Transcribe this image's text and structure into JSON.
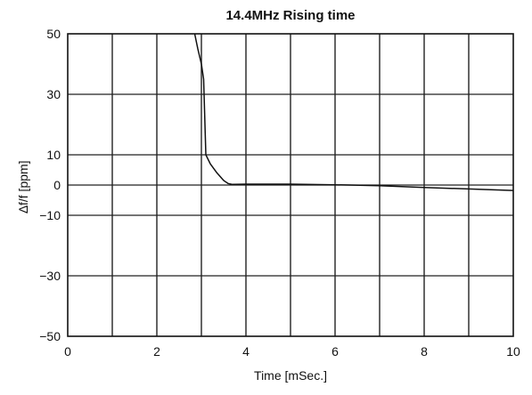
{
  "chart_data": {
    "type": "line",
    "title": "14.4MHz Rising time",
    "xlabel": "Time [mSec.]",
    "ylabel": "∆f/f [ppm]",
    "xlim": [
      0,
      10
    ],
    "ylim": [
      -50,
      50
    ],
    "xticks": [
      0,
      2,
      4,
      6,
      8,
      10
    ],
    "yticks": [
      50,
      30,
      10,
      0,
      -10,
      -30,
      -50
    ],
    "xtick_labels": [
      "0",
      "2",
      "4",
      "6",
      "8",
      "10"
    ],
    "ytick_labels": [
      "50",
      "30",
      "10",
      "0",
      "−10",
      "−30",
      "−50"
    ],
    "grid": true,
    "x_gridlines": [
      1,
      2,
      3,
      4,
      5,
      6,
      7,
      8,
      9
    ],
    "y_gridlines": [
      30,
      10,
      0,
      -10,
      -30
    ],
    "series": [
      {
        "color": "#111111",
        "x": [
          2.85,
          2.92,
          3.0,
          3.05,
          3.08,
          3.1,
          3.2,
          3.35,
          3.5,
          3.6,
          3.7,
          4.0,
          5.0,
          6.0,
          7.0,
          8.0,
          9.0,
          10.0
        ],
        "y": [
          50,
          45,
          40,
          35,
          20,
          10,
          7,
          4,
          1.5,
          0.5,
          0.2,
          0.3,
          0.3,
          0.1,
          -0.2,
          -0.8,
          -1.3,
          -1.8
        ]
      }
    ]
  }
}
